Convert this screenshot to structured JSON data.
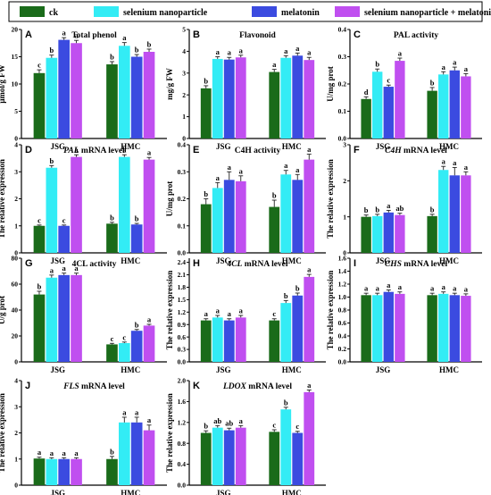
{
  "legend": {
    "entries": [
      {
        "label": "ck",
        "color": "#1a6b1a"
      },
      {
        "label": "selenium nanoparticle",
        "color": "#33ecf5"
      },
      {
        "label": "melatonin",
        "color": "#3b4be0"
      },
      {
        "label": "selenium nanoparticle + melatonin",
        "color": "#c04ff0"
      }
    ]
  },
  "chart_data": [
    {
      "panel": "A",
      "type": "bar",
      "title": "Total phenol",
      "ylabel": "μmol/g FW",
      "categories": [
        "JSG",
        "HMC"
      ],
      "ylim": [
        0,
        20
      ],
      "yticks": [
        0,
        5,
        10,
        15,
        20
      ],
      "series": [
        {
          "name": "ck",
          "values": [
            12,
            13.6
          ],
          "errors": [
            0.6,
            0.5
          ],
          "letters": [
            "c",
            "b"
          ]
        },
        {
          "name": "selenium nanoparticle",
          "values": [
            14.8,
            17.0
          ],
          "errors": [
            0.5,
            0.6
          ],
          "letters": [
            "b",
            "a"
          ]
        },
        {
          "name": "melatonin",
          "values": [
            18.1,
            15.0
          ],
          "errors": [
            0.4,
            0.4
          ],
          "letters": [
            "a",
            "b"
          ]
        },
        {
          "name": "selenium nanoparticle + melatonin",
          "values": [
            17.5,
            15.9
          ],
          "errors": [
            0.5,
            0.5
          ],
          "letters": [
            "a",
            "b"
          ]
        }
      ]
    },
    {
      "panel": "B",
      "type": "bar",
      "title": "Flavonoid",
      "ylabel": "mg/g FW",
      "categories": [
        "JSG",
        "HMC"
      ],
      "ylim": [
        0,
        5
      ],
      "yticks": [
        0,
        1,
        2,
        3,
        4,
        5
      ],
      "series": [
        {
          "name": "ck",
          "values": [
            2.3,
            3.05
          ],
          "errors": [
            0.12,
            0.12
          ],
          "letters": [
            "b",
            "a"
          ]
        },
        {
          "name": "selenium nanoparticle",
          "values": [
            3.65,
            3.7
          ],
          "errors": [
            0.1,
            0.1
          ],
          "letters": [
            "a",
            "a"
          ]
        },
        {
          "name": "melatonin",
          "values": [
            3.62,
            3.8
          ],
          "errors": [
            0.1,
            0.12
          ],
          "letters": [
            "a",
            "a"
          ]
        },
        {
          "name": "selenium nanoparticle + melatonin",
          "values": [
            3.72,
            3.6
          ],
          "errors": [
            0.1,
            0.12
          ],
          "letters": [
            "a",
            "a"
          ]
        }
      ]
    },
    {
      "panel": "C",
      "type": "bar",
      "title": "PAL activity",
      "ylabel": "U/mg prot",
      "categories": [
        "JSG",
        "HMC"
      ],
      "ylim": [
        0,
        0.4
      ],
      "yticks": [
        0.0,
        0.1,
        0.2,
        0.3,
        0.4
      ],
      "series": [
        {
          "name": "ck",
          "values": [
            0.145,
            0.175
          ],
          "errors": [
            0.008,
            0.012
          ],
          "letters": [
            "d",
            "b"
          ]
        },
        {
          "name": "selenium nanoparticle",
          "values": [
            0.245,
            0.235
          ],
          "errors": [
            0.01,
            0.01
          ],
          "letters": [
            "b",
            "a"
          ]
        },
        {
          "name": "melatonin",
          "values": [
            0.19,
            0.25
          ],
          "errors": [
            0.006,
            0.012
          ],
          "letters": [
            "c",
            "a"
          ]
        },
        {
          "name": "selenium nanoparticle + melatonin",
          "values": [
            0.285,
            0.228
          ],
          "errors": [
            0.01,
            0.01
          ],
          "letters": [
            "a",
            "a"
          ]
        }
      ]
    },
    {
      "panel": "D",
      "type": "bar",
      "title": "PAL mRNA level",
      "title_italic": "PAL",
      "title_rest": " mRNA level",
      "ylabel": "The relative expression",
      "categories": [
        "JSG",
        "HMC"
      ],
      "ylim": [
        0,
        4
      ],
      "yticks": [
        0,
        1,
        2,
        3,
        4
      ],
      "series": [
        {
          "name": "ck",
          "values": [
            1.0,
            1.08
          ],
          "errors": [
            0.03,
            0.05
          ],
          "letters": [
            "c",
            "b"
          ]
        },
        {
          "name": "selenium nanoparticle",
          "values": [
            3.15,
            3.55
          ],
          "errors": [
            0.08,
            0.08
          ],
          "letters": [
            "b",
            "a"
          ]
        },
        {
          "name": "melatonin",
          "values": [
            1.0,
            1.05
          ],
          "errors": [
            0.03,
            0.04
          ],
          "letters": [
            "c",
            "b"
          ]
        },
        {
          "name": "selenium nanoparticle + melatonin",
          "values": [
            3.55,
            3.45
          ],
          "errors": [
            0.08,
            0.08
          ],
          "letters": [
            "a",
            "a"
          ]
        }
      ]
    },
    {
      "panel": "E",
      "type": "bar",
      "title": "C4H activity",
      "ylabel": "U/mg prot",
      "categories": [
        "JSG",
        "HMC"
      ],
      "ylim": [
        0,
        0.4
      ],
      "yticks": [
        0.0,
        0.1,
        0.2,
        0.3,
        0.4
      ],
      "series": [
        {
          "name": "ck",
          "values": [
            0.18,
            0.17
          ],
          "errors": [
            0.02,
            0.025
          ],
          "letters": [
            "b",
            "b"
          ]
        },
        {
          "name": "selenium nanoparticle",
          "values": [
            0.24,
            0.29
          ],
          "errors": [
            0.02,
            0.015
          ],
          "letters": [
            "a",
            "a"
          ]
        },
        {
          "name": "melatonin",
          "values": [
            0.27,
            0.27
          ],
          "errors": [
            0.03,
            0.02
          ],
          "letters": [
            "a",
            "a"
          ]
        },
        {
          "name": "selenium nanoparticle + melatonin",
          "values": [
            0.265,
            0.345
          ],
          "errors": [
            0.02,
            0.02
          ],
          "letters": [
            "a",
            "a"
          ]
        }
      ]
    },
    {
      "panel": "F",
      "type": "bar",
      "title": "C4H mRNA level",
      "title_italic": "C4H",
      "title_rest": " mRNA level",
      "ylabel": "The relative expression",
      "categories": [
        "JSG",
        "HMC"
      ],
      "ylim": [
        0,
        3
      ],
      "yticks": [
        0,
        1,
        2,
        3
      ],
      "series": [
        {
          "name": "ck",
          "values": [
            1.0,
            1.02
          ],
          "errors": [
            0.05,
            0.05
          ],
          "letters": [
            "b",
            "b"
          ]
        },
        {
          "name": "selenium nanoparticle",
          "values": [
            1.02,
            2.3
          ],
          "errors": [
            0.05,
            0.1
          ],
          "letters": [
            "b",
            "a"
          ]
        },
        {
          "name": "melatonin",
          "values": [
            1.12,
            2.15
          ],
          "errors": [
            0.06,
            0.22
          ],
          "letters": [
            "a",
            "a"
          ]
        },
        {
          "name": "selenium nanoparticle + melatonin",
          "values": [
            1.05,
            2.15
          ],
          "errors": [
            0.05,
            0.1
          ],
          "letters": [
            "ab",
            "a"
          ]
        }
      ]
    },
    {
      "panel": "G",
      "type": "bar",
      "title": "4CL activity",
      "ylabel": "U/g prot",
      "categories": [
        "JSG",
        "HMC"
      ],
      "ylim": [
        0,
        80
      ],
      "yticks": [
        0,
        20,
        40,
        60,
        80
      ],
      "series": [
        {
          "name": "ck",
          "values": [
            52,
            13.5
          ],
          "errors": [
            2.5,
            0.8
          ],
          "letters": [
            "b",
            "c"
          ]
        },
        {
          "name": "selenium nanoparticle",
          "values": [
            65,
            14.5
          ],
          "errors": [
            2,
            0.8
          ],
          "letters": [
            "a",
            "c"
          ]
        },
        {
          "name": "melatonin",
          "values": [
            67,
            24
          ],
          "errors": [
            1.5,
            1
          ],
          "letters": [
            "a",
            "b"
          ]
        },
        {
          "name": "selenium nanoparticle + melatonin",
          "values": [
            67,
            28
          ],
          "errors": [
            1.5,
            1
          ],
          "letters": [
            "a",
            "a"
          ]
        }
      ]
    },
    {
      "panel": "H",
      "type": "bar",
      "title": "4CL mRNA level",
      "title_italic": "4CL",
      "title_rest": " mRNA level",
      "ylabel": "The relative expression",
      "categories": [
        "JSG",
        "HMC"
      ],
      "ylim": [
        0,
        2.5
      ],
      "yticks": [
        0.0,
        0.3,
        0.6,
        0.9,
        1.2,
        1.5,
        1.8,
        2.1,
        2.4
      ],
      "series": [
        {
          "name": "ck",
          "values": [
            1.0,
            1.0
          ],
          "errors": [
            0.04,
            0.04
          ],
          "letters": [
            "a",
            "c"
          ]
        },
        {
          "name": "selenium nanoparticle",
          "values": [
            1.07,
            1.42
          ],
          "errors": [
            0.05,
            0.06
          ],
          "letters": [
            "a",
            "b"
          ]
        },
        {
          "name": "melatonin",
          "values": [
            1.0,
            1.6
          ],
          "errors": [
            0.04,
            0.06
          ],
          "letters": [
            "a",
            "b"
          ]
        },
        {
          "name": "selenium nanoparticle + melatonin",
          "values": [
            1.07,
            2.05
          ],
          "errors": [
            0.05,
            0.06
          ],
          "letters": [
            "a",
            "a"
          ]
        }
      ]
    },
    {
      "panel": "I",
      "type": "bar",
      "title": "CHS mRNA level",
      "title_italic": "CHS",
      "title_rest": " mRNA level",
      "ylabel": "The relative expression",
      "categories": [
        "JSG",
        "HMC"
      ],
      "ylim": [
        0,
        1.6
      ],
      "yticks": [
        0.0,
        0.2,
        0.4,
        0.6,
        0.8,
        1.0,
        1.2,
        1.4,
        1.6
      ],
      "series": [
        {
          "name": "ck",
          "values": [
            1.03,
            1.03
          ],
          "errors": [
            0.03,
            0.03
          ],
          "letters": [
            "a",
            "a"
          ]
        },
        {
          "name": "selenium nanoparticle",
          "values": [
            1.03,
            1.05
          ],
          "errors": [
            0.03,
            0.03
          ],
          "letters": [
            "a",
            "a"
          ]
        },
        {
          "name": "melatonin",
          "values": [
            1.08,
            1.03
          ],
          "errors": [
            0.03,
            0.03
          ],
          "letters": [
            "a",
            "a"
          ]
        },
        {
          "name": "selenium nanoparticle + melatonin",
          "values": [
            1.05,
            1.02
          ],
          "errors": [
            0.03,
            0.03
          ],
          "letters": [
            "a",
            "a"
          ]
        }
      ]
    },
    {
      "panel": "J",
      "type": "bar",
      "title": "FLS mRNA level",
      "title_italic": "FLS",
      "title_rest": " mRNA level",
      "ylabel": "The relative expression",
      "categories": [
        "JSG",
        "HMC"
      ],
      "ylim": [
        0,
        4
      ],
      "yticks": [
        0,
        1,
        2,
        3,
        4
      ],
      "series": [
        {
          "name": "ck",
          "values": [
            1.02,
            1.0
          ],
          "errors": [
            0.05,
            0.1
          ],
          "letters": [
            "a",
            "b"
          ]
        },
        {
          "name": "selenium nanoparticle",
          "values": [
            1.0,
            2.4
          ],
          "errors": [
            0.05,
            0.2
          ],
          "letters": [
            "a",
            "a"
          ]
        },
        {
          "name": "melatonin",
          "values": [
            1.0,
            2.4
          ],
          "errors": [
            0.05,
            0.2
          ],
          "letters": [
            "a",
            "a"
          ]
        },
        {
          "name": "selenium nanoparticle + melatonin",
          "values": [
            1.0,
            2.1
          ],
          "errors": [
            0.05,
            0.2
          ],
          "letters": [
            "a",
            "a"
          ]
        }
      ]
    },
    {
      "panel": "K",
      "type": "bar",
      "title": "LDOX mRNA level",
      "title_italic": "LDOX",
      "title_rest": " mRNA level",
      "ylabel": "The relative expression",
      "categories": [
        "JSG",
        "HMC"
      ],
      "ylim": [
        0,
        2.0
      ],
      "yticks": [
        0.0,
        0.4,
        0.8,
        1.2,
        1.6,
        2.0
      ],
      "series": [
        {
          "name": "ck",
          "values": [
            1.0,
            1.02
          ],
          "errors": [
            0.04,
            0.04
          ],
          "letters": [
            "b",
            "c"
          ]
        },
        {
          "name": "selenium nanoparticle",
          "values": [
            1.1,
            1.45
          ],
          "errors": [
            0.04,
            0.04
          ],
          "letters": [
            "ab",
            "b"
          ]
        },
        {
          "name": "melatonin",
          "values": [
            1.05,
            1.0
          ],
          "errors": [
            0.04,
            0.03
          ],
          "letters": [
            "ab",
            "c"
          ]
        },
        {
          "name": "selenium nanoparticle + melatonin",
          "values": [
            1.1,
            1.78
          ],
          "errors": [
            0.04,
            0.04
          ],
          "letters": [
            "a",
            "a"
          ]
        }
      ]
    }
  ]
}
